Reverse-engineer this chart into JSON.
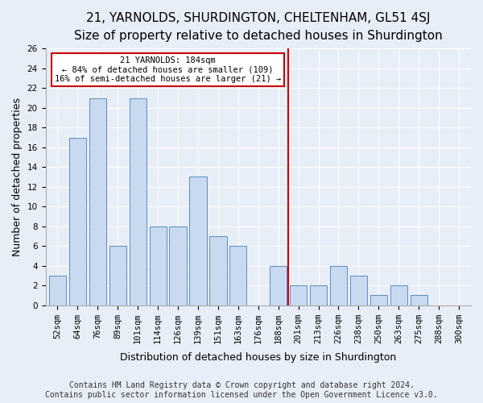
{
  "title": "21, YARNOLDS, SHURDINGTON, CHELTENHAM, GL51 4SJ",
  "subtitle": "Size of property relative to detached houses in Shurdington",
  "xlabel": "Distribution of detached houses by size in Shurdington",
  "ylabel": "Number of detached properties",
  "bar_labels": [
    "52sqm",
    "64sqm",
    "76sqm",
    "89sqm",
    "101sqm",
    "114sqm",
    "126sqm",
    "139sqm",
    "151sqm",
    "163sqm",
    "176sqm",
    "188sqm",
    "201sqm",
    "213sqm",
    "226sqm",
    "238sqm",
    "250sqm",
    "263sqm",
    "275sqm",
    "288sqm",
    "300sqm"
  ],
  "bar_values": [
    3,
    17,
    21,
    6,
    21,
    8,
    8,
    13,
    7,
    6,
    0,
    4,
    2,
    2,
    4,
    3,
    1,
    2,
    1,
    0,
    0
  ],
  "bar_color": "#c9d9f0",
  "bar_edgecolor": "#5a8fc4",
  "vline_x": 11.5,
  "vline_color": "#cc0000",
  "annotation_text": "21 YARNOLDS: 184sqm\n← 84% of detached houses are smaller (109)\n16% of semi-detached houses are larger (21) →",
  "annotation_box_color": "#cc0000",
  "ylim": [
    0,
    26
  ],
  "yticks": [
    0,
    2,
    4,
    6,
    8,
    10,
    12,
    14,
    16,
    18,
    20,
    22,
    24,
    26
  ],
  "footer_text": "Contains HM Land Registry data © Crown copyright and database right 2024.\nContains public sector information licensed under the Open Government Licence v3.0.",
  "background_color": "#e8eef8",
  "plot_bg_color": "#e8eef8",
  "title_fontsize": 11,
  "subtitle_fontsize": 10,
  "xlabel_fontsize": 9,
  "ylabel_fontsize": 9,
  "tick_fontsize": 7.5,
  "footer_fontsize": 7
}
